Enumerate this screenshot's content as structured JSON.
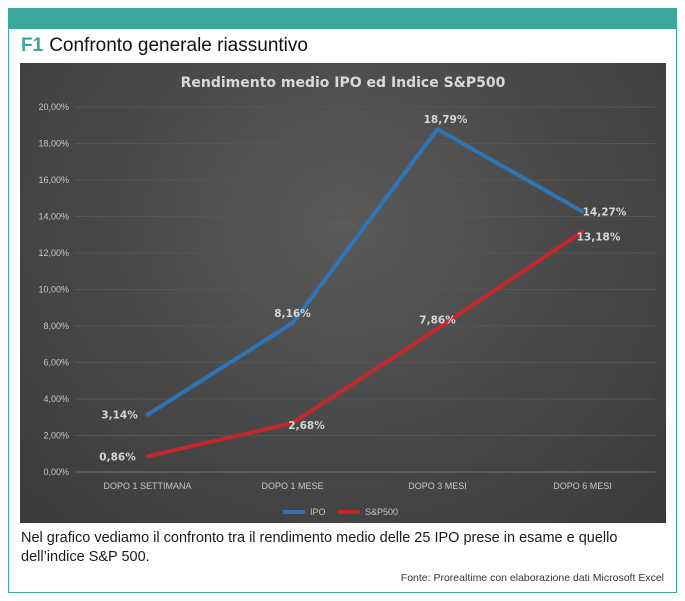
{
  "figure": {
    "number": "F1",
    "title": "Confronto generale riassuntivo"
  },
  "caption": "Nel grafico vediamo il confronto tra il rendimento medio delle 25 IPO prese in esame e quello dell’indice S&P 500.",
  "source": "Fonte: Prorealtime con elaborazione dati Microsoft Excel",
  "colors": {
    "accent": "#3aa79c",
    "ipo": "#2e75b6",
    "sp500": "#c0282b",
    "chart_background": "#474747"
  },
  "chart_data": {
    "type": "line",
    "title": "Rendimento medio IPO ed Indice S&P500",
    "categories": [
      "DOPO 1 SETTIMANA",
      "DOPO 1 MESE",
      "DOPO 3 MESI",
      "DOPO 6 MESI"
    ],
    "series": [
      {
        "name": "IPO",
        "values": [
          3.14,
          8.16,
          18.79,
          14.27
        ],
        "labels": [
          "3,14%",
          "8,16%",
          "18,79%",
          "14,27%"
        ],
        "color": "#2e75b6"
      },
      {
        "name": "S&P500",
        "values": [
          0.86,
          2.68,
          7.86,
          13.18
        ],
        "labels": [
          "0,86%",
          "2,68%",
          "7,86%",
          "13,18%"
        ],
        "color": "#c0282b"
      }
    ],
    "ylim": [
      0,
      20
    ],
    "yticks": [
      "0,00%",
      "2,00%",
      "4,00%",
      "6,00%",
      "8,00%",
      "10,00%",
      "12,00%",
      "14,00%",
      "16,00%",
      "18,00%",
      "20,00%"
    ],
    "grid": true,
    "legend": "bottom"
  }
}
